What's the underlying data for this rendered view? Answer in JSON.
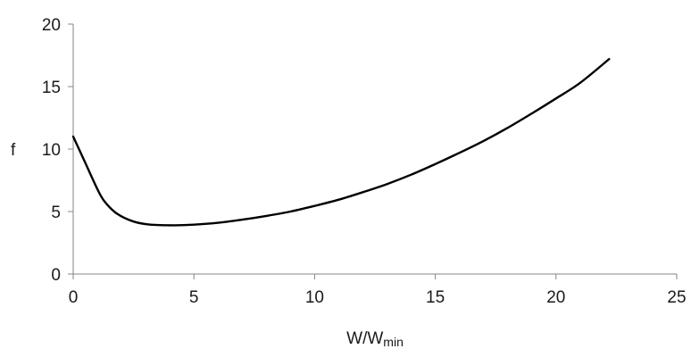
{
  "chart_data": {
    "type": "line",
    "title": "",
    "xlabel": "W/W",
    "xlabel_sub": "min",
    "ylabel": "f",
    "xlim": [
      0,
      25
    ],
    "ylim": [
      0,
      20
    ],
    "xticks": [
      "0",
      "5",
      "10",
      "15",
      "20",
      "25"
    ],
    "yticks": [
      "0",
      "5",
      "10",
      "15",
      "20"
    ],
    "grid": false,
    "legend": "none",
    "line_color": "#000000",
    "series": [
      {
        "x": [
          0,
          0.5,
          1.0,
          1.3,
          1.8,
          2.5,
          3.2,
          4.2,
          5.0,
          6.0,
          7.0,
          8.0,
          9.0,
          10.0,
          11.0,
          12.0,
          13.0,
          14.0,
          15.0,
          16.0,
          17.0,
          18.0,
          19.0,
          20.0,
          21.0,
          22.2
        ],
        "y": [
          11.0,
          8.9,
          6.8,
          5.8,
          4.85,
          4.2,
          3.95,
          3.9,
          3.95,
          4.1,
          4.35,
          4.65,
          5.0,
          5.45,
          5.95,
          6.55,
          7.2,
          7.95,
          8.8,
          9.7,
          10.65,
          11.7,
          12.85,
          14.05,
          15.3,
          17.2
        ]
      }
    ]
  }
}
